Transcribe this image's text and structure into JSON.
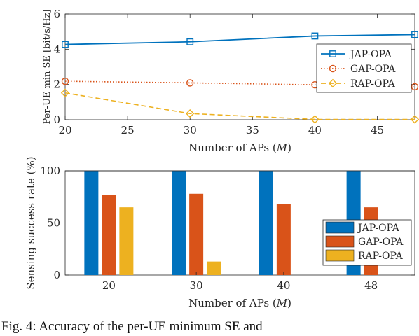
{
  "caption": "Fig. 4: Accuracy of the per-UE minimum SE and",
  "chart_data": [
    {
      "type": "line",
      "title": "",
      "xlabel": "Number of APs (M)",
      "ylabel": "Per-UE min SE [bit/s/Hz]",
      "xlim": [
        20,
        48
      ],
      "ylim": [
        0,
        6
      ],
      "xticks": [
        20,
        25,
        30,
        35,
        40,
        45
      ],
      "yticks": [
        0,
        2,
        4,
        6
      ],
      "grid": false,
      "legend_position": "center-right",
      "series": [
        {
          "name": "JAP-OPA",
          "color": "#0072BD",
          "marker": "square",
          "dash": "solid",
          "points": [
            [
              20,
              4.27
            ],
            [
              30,
              4.42
            ],
            [
              40,
              4.75
            ],
            [
              48,
              4.83
            ]
          ]
        },
        {
          "name": "GAP-OPA",
          "color": "#D95319",
          "marker": "circle",
          "dash": "dotted",
          "points": [
            [
              20,
              2.18
            ],
            [
              30,
              2.09
            ],
            [
              40,
              1.98
            ],
            [
              48,
              1.87
            ]
          ]
        },
        {
          "name": "RAP-OPA",
          "color": "#EDB120",
          "marker": "diamond",
          "dash": "dashed",
          "points": [
            [
              20,
              1.52
            ],
            [
              30,
              0.35
            ],
            [
              40,
              0.02
            ],
            [
              48,
              0.02
            ]
          ]
        }
      ]
    },
    {
      "type": "bar",
      "title": "",
      "xlabel": "Number of APs (M)",
      "ylabel": "Sensing success rate (%)",
      "categories": [
        "20",
        "30",
        "40",
        "48"
      ],
      "ylim": [
        0,
        100
      ],
      "yticks": [
        0,
        50,
        100
      ],
      "grid": false,
      "legend_position": "bottom-right",
      "series": [
        {
          "name": "JAP-OPA",
          "color": "#0072BD",
          "values": [
            100,
            100,
            100,
            100
          ]
        },
        {
          "name": "GAP-OPA",
          "color": "#D95319",
          "values": [
            77,
            78,
            68,
            65
          ]
        },
        {
          "name": "RAP-OPA",
          "color": "#EDB120",
          "values": [
            65,
            13,
            0,
            0
          ]
        }
      ]
    }
  ]
}
